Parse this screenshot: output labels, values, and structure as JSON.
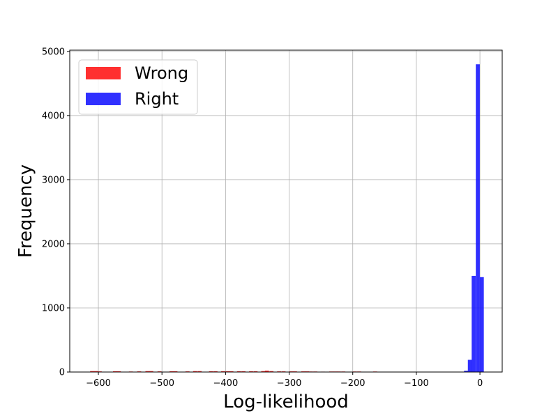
{
  "chart_data": {
    "type": "bar",
    "title": "",
    "xlabel": "Log-likelihood",
    "ylabel": "Frequency",
    "xlim": [
      -645,
      35
    ],
    "ylim": [
      0,
      5020
    ],
    "xticks": [
      -600,
      -500,
      -400,
      -300,
      -200,
      -100,
      0
    ],
    "xtick_labels": [
      "−600",
      "−500",
      "−400",
      "−300",
      "−200",
      "−100",
      "0"
    ],
    "yticks": [
      0,
      1000,
      2000,
      3000,
      4000,
      5000
    ],
    "ytick_labels": [
      "0",
      "1000",
      "2000",
      "3000",
      "4000",
      "5000"
    ],
    "grid": true,
    "legend_position": "top-left",
    "bin_width": 6.3,
    "series": [
      {
        "name": "Wrong",
        "color": "#ff1a1a",
        "bins": [
          [
            -613,
            14
          ],
          [
            -607,
            14
          ],
          [
            -601,
            10
          ],
          [
            -577,
            12
          ],
          [
            -571,
            12
          ],
          [
            -552,
            8
          ],
          [
            -539,
            10
          ],
          [
            -526,
            14
          ],
          [
            -520,
            14
          ],
          [
            -507,
            10
          ],
          [
            -488,
            12
          ],
          [
            -482,
            12
          ],
          [
            -463,
            10
          ],
          [
            -451,
            14
          ],
          [
            -444,
            14
          ],
          [
            -426,
            12
          ],
          [
            -419,
            12
          ],
          [
            -407,
            12
          ],
          [
            -400,
            12
          ],
          [
            -394,
            12
          ],
          [
            -382,
            12
          ],
          [
            -375,
            12
          ],
          [
            -363,
            12
          ],
          [
            -356,
            12
          ],
          [
            -344,
            14
          ],
          [
            -338,
            22
          ],
          [
            -331,
            14
          ],
          [
            -319,
            10
          ],
          [
            -312,
            10
          ],
          [
            -300,
            10
          ],
          [
            -294,
            10
          ],
          [
            -281,
            10
          ],
          [
            -275,
            10
          ],
          [
            -269,
            8
          ],
          [
            -262,
            8
          ],
          [
            -250,
            6
          ],
          [
            -237,
            8
          ],
          [
            -231,
            8
          ],
          [
            -225,
            8
          ],
          [
            -218,
            8
          ],
          [
            -200,
            8
          ],
          [
            -193,
            8
          ],
          [
            -168,
            8
          ]
        ]
      },
      {
        "name": "Right",
        "color": "#1a1aff",
        "bins": [
          [
            -25,
            20
          ],
          [
            -19,
            190
          ],
          [
            -13,
            1500
          ],
          [
            -6.5,
            4800
          ],
          [
            -0.2,
            1480
          ]
        ]
      }
    ]
  }
}
